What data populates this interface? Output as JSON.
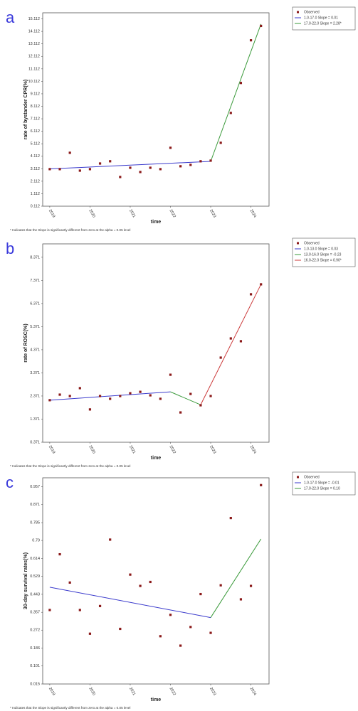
{
  "chart_data": [
    {
      "type": "scatter",
      "panel": "a",
      "x_label": "time",
      "y_label": "rate of bystander CPR(%)",
      "note": "* Indicates that the Slope is significantly different from zero at the alpha = 0.05 level",
      "xlim": [
        0.3,
        22.8
      ],
      "ylim": [
        0.112,
        15.6
      ],
      "xticks": [
        {
          "value": 1,
          "label": "2019"
        },
        {
          "value": 5,
          "label": "2020"
        },
        {
          "value": 9,
          "label": "2021"
        },
        {
          "value": 13,
          "label": "2022"
        },
        {
          "value": 17,
          "label": "2023"
        },
        {
          "value": 21,
          "label": "2024"
        }
      ],
      "yticks": [
        0.112,
        1.112,
        2.112,
        3.112,
        4.112,
        5.112,
        6.112,
        7.112,
        8.112,
        9.112,
        10.112,
        11.112,
        12.112,
        13.112,
        14.112,
        15.112
      ],
      "series": [
        {
          "name": "Observed",
          "mode": "markers",
          "color": "#8b1a1a",
          "x": [
            1,
            2,
            3,
            4,
            5,
            6,
            7,
            8,
            9,
            10,
            11,
            12,
            13,
            14,
            15,
            16,
            17,
            18,
            19,
            20,
            21,
            22
          ],
          "values": [
            3.08,
            3.08,
            4.39,
            2.96,
            3.08,
            3.53,
            3.71,
            2.45,
            3.19,
            2.85,
            3.19,
            3.08,
            4.79,
            3.31,
            3.42,
            3.71,
            3.76,
            5.19,
            7.58,
            9.98,
            13.4,
            14.55
          ]
        },
        {
          "name": "1.0-17.0 Slope = 0.01",
          "mode": "lines",
          "color": "#3a3acc",
          "x": [
            1,
            17
          ],
          "values": [
            3.1,
            3.7
          ]
        },
        {
          "name": "17.0-22.0 Slope = 2.28*",
          "mode": "lines",
          "color": "#3a9a3a",
          "x": [
            17,
            22
          ],
          "values": [
            3.7,
            14.7
          ]
        }
      ]
    },
    {
      "type": "scatter",
      "panel": "b",
      "x_label": "time",
      "y_label": "rate of ROSC(%)",
      "note": "* Indicates that the Slope is significantly different from zero at the alpha = 0.05 level",
      "xlim": [
        0.3,
        22.8
      ],
      "ylim": [
        0.371,
        8.95
      ],
      "xticks": [
        {
          "value": 1,
          "label": "2019"
        },
        {
          "value": 5,
          "label": "2020"
        },
        {
          "value": 9,
          "label": "2021"
        },
        {
          "value": 13,
          "label": "2022"
        },
        {
          "value": 17,
          "label": "2023"
        },
        {
          "value": 21,
          "label": "2024"
        }
      ],
      "yticks": [
        0.371,
        1.371,
        2.371,
        3.371,
        4.371,
        5.371,
        6.371,
        7.371,
        8.371
      ],
      "series": [
        {
          "name": "Observed",
          "mode": "markers",
          "color": "#8b1a1a",
          "x": [
            1,
            2,
            3,
            4,
            5,
            6,
            7,
            8,
            9,
            10,
            11,
            12,
            13,
            14,
            15,
            16,
            17,
            18,
            19,
            20,
            21,
            22
          ],
          "values": [
            2.19,
            2.43,
            2.37,
            2.71,
            1.79,
            2.37,
            2.25,
            2.37,
            2.49,
            2.55,
            2.4,
            2.25,
            3.29,
            1.66,
            2.46,
            1.97,
            2.37,
            4.03,
            4.86,
            4.74,
            6.77,
            7.2
          ]
        },
        {
          "name": "1.0-13.0 Slope = 0.03",
          "mode": "lines",
          "color": "#3a3acc",
          "x": [
            1,
            13
          ],
          "values": [
            2.19,
            2.55
          ]
        },
        {
          "name": "13.0-16.0 Slope = -0.23",
          "mode": "lines",
          "color": "#3a9a3a",
          "x": [
            13,
            16
          ],
          "values": [
            2.55,
            1.99
          ]
        },
        {
          "name": "16.0-22.0 Slope = 0.90*",
          "mode": "lines",
          "color": "#cc3a3a",
          "x": [
            16,
            22
          ],
          "values": [
            1.99,
            7.2
          ]
        }
      ]
    },
    {
      "type": "scatter",
      "panel": "c",
      "x_label": "time",
      "y_label": "30-day survival rates(%)",
      "note": "* Indicates that the Slope is significantly different from zero at the alpha = 0.05 level",
      "xlim": [
        0.3,
        22.8
      ],
      "ylim": [
        0.015,
        0.999
      ],
      "xticks": [
        {
          "value": 1,
          "label": "2019"
        },
        {
          "value": 5,
          "label": "2020"
        },
        {
          "value": 9,
          "label": "2021"
        },
        {
          "value": 13,
          "label": "2022"
        },
        {
          "value": 17,
          "label": "2023"
        },
        {
          "value": 21,
          "label": "2024"
        }
      ],
      "yticks": [
        0.015,
        0.101,
        0.186,
        0.272,
        0.357,
        0.443,
        0.529,
        0.614,
        {
          "value": 0.7,
          "label": "0.70"
        },
        0.785,
        0.871,
        0.957
      ],
      "series": [
        {
          "name": "Observed",
          "mode": "markers",
          "color": "#8b1a1a",
          "x": [
            1,
            2,
            3,
            4,
            5,
            6,
            7,
            8,
            9,
            10,
            11,
            12,
            13,
            14,
            15,
            16,
            17,
            18,
            19,
            20,
            21,
            22
          ],
          "values": [
            0.368,
            0.634,
            0.499,
            0.368,
            0.255,
            0.387,
            0.704,
            0.278,
            0.537,
            0.483,
            0.502,
            0.243,
            0.345,
            0.198,
            0.287,
            0.444,
            0.259,
            0.486,
            0.807,
            0.419,
            0.483,
            0.964
          ]
        },
        {
          "name": "1.0-17.0 Slope = -0.01",
          "mode": "lines",
          "color": "#3a3acc",
          "x": [
            1,
            17
          ],
          "values": [
            0.477,
            0.332
          ]
        },
        {
          "name": "17.0-22.0 Slope = 0.10",
          "mode": "lines",
          "color": "#3a9a3a",
          "x": [
            17,
            22
          ],
          "values": [
            0.332,
            0.707
          ]
        }
      ]
    }
  ]
}
